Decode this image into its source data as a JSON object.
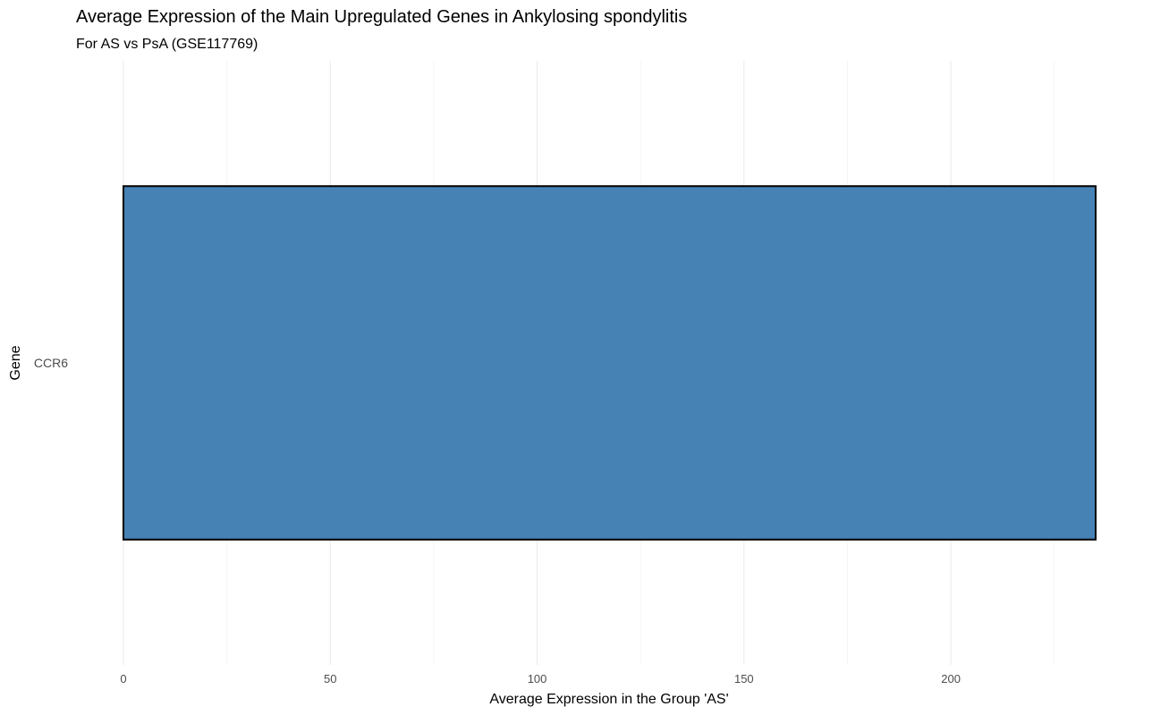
{
  "chart_data": {
    "type": "bar",
    "orientation": "horizontal",
    "title": "Average Expression of the Main Upregulated Genes in Ankylosing spondylitis",
    "subtitle": "For AS vs PsA (GSE117769)",
    "xlabel": "Average Expression in the Group 'AS'",
    "ylabel": "Gene",
    "categories": [
      "CCR6"
    ],
    "values": [
      235
    ],
    "xlim": [
      0,
      235
    ],
    "xticks": [
      0,
      50,
      100,
      150,
      200
    ],
    "xminor": [
      25,
      75,
      125,
      175,
      225
    ],
    "grid": true,
    "bar_fill": "#4682b4",
    "bar_stroke": "#000000"
  }
}
